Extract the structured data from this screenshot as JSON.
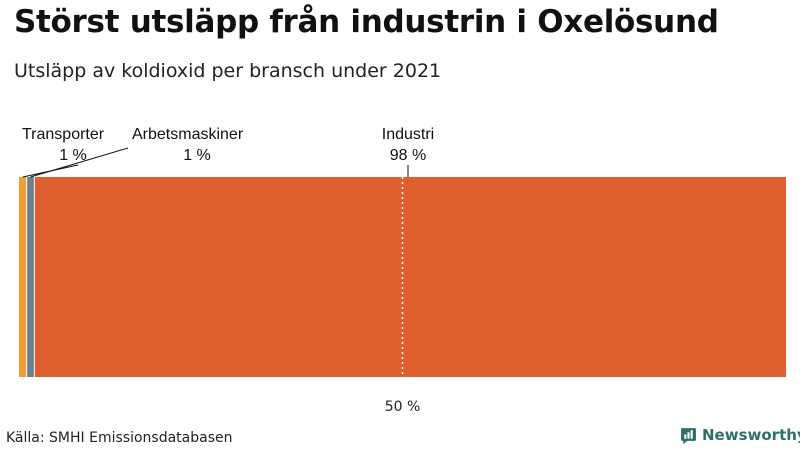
{
  "header": {
    "title": "Störst utsläpp från industrin i Oxelösund",
    "subtitle": "Utsläpp av koldioxid per bransch under 2021"
  },
  "chart_data": {
    "type": "bar",
    "orientation": "horizontal-stacked-100",
    "title": "Störst utsläpp från industrin i Oxelösund",
    "subtitle": "Utsläpp av koldioxid per bransch under 2021",
    "series": [
      {
        "name": "Transporter",
        "value": 1,
        "value_label": "1 %",
        "color": "#F0A030"
      },
      {
        "name": "Arbetsmaskiner",
        "value": 1,
        "value_label": "1 %",
        "color": "#6B7F8C"
      },
      {
        "name": "Industri",
        "value": 98,
        "value_label": "98 %",
        "color": "#E05F2E"
      }
    ],
    "annotations": [
      {
        "text": "Transporter:"
      },
      {
        "text": "Arbetsmaskiner:"
      },
      {
        "text": "Industri:"
      }
    ],
    "reference_line": {
      "value": 50,
      "label": "50 %",
      "style": "dotted"
    },
    "xlim": [
      0,
      100
    ],
    "grid": false,
    "legend": "none"
  },
  "footer": {
    "source": "Källa: SMHI Emissionsdatabasen",
    "brand": "Newsworthy",
    "brand_icon": "newsworthy-logo-icon",
    "brand_color": "#2f6f6a"
  }
}
